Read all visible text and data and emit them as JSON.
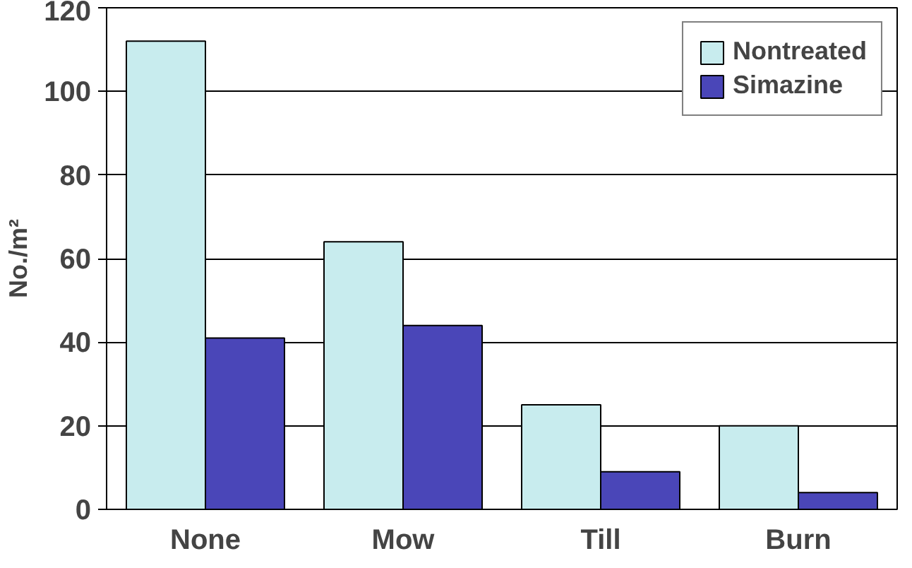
{
  "chart_data": {
    "type": "bar",
    "ylabel": "No./m²",
    "categories": [
      "None",
      "Mow",
      "Till",
      "Burn"
    ],
    "series": [
      {
        "name": "Nontreated",
        "color": "#c8ecee",
        "values": [
          112,
          64,
          25,
          20
        ]
      },
      {
        "name": "Simazine",
        "color": "#4a46b8",
        "values": [
          41,
          44,
          9,
          4
        ]
      }
    ],
    "ylim": [
      0,
      120
    ],
    "yticks": [
      0,
      20,
      40,
      60,
      80,
      100,
      120
    ],
    "grid": "y",
    "legend": "top right"
  }
}
